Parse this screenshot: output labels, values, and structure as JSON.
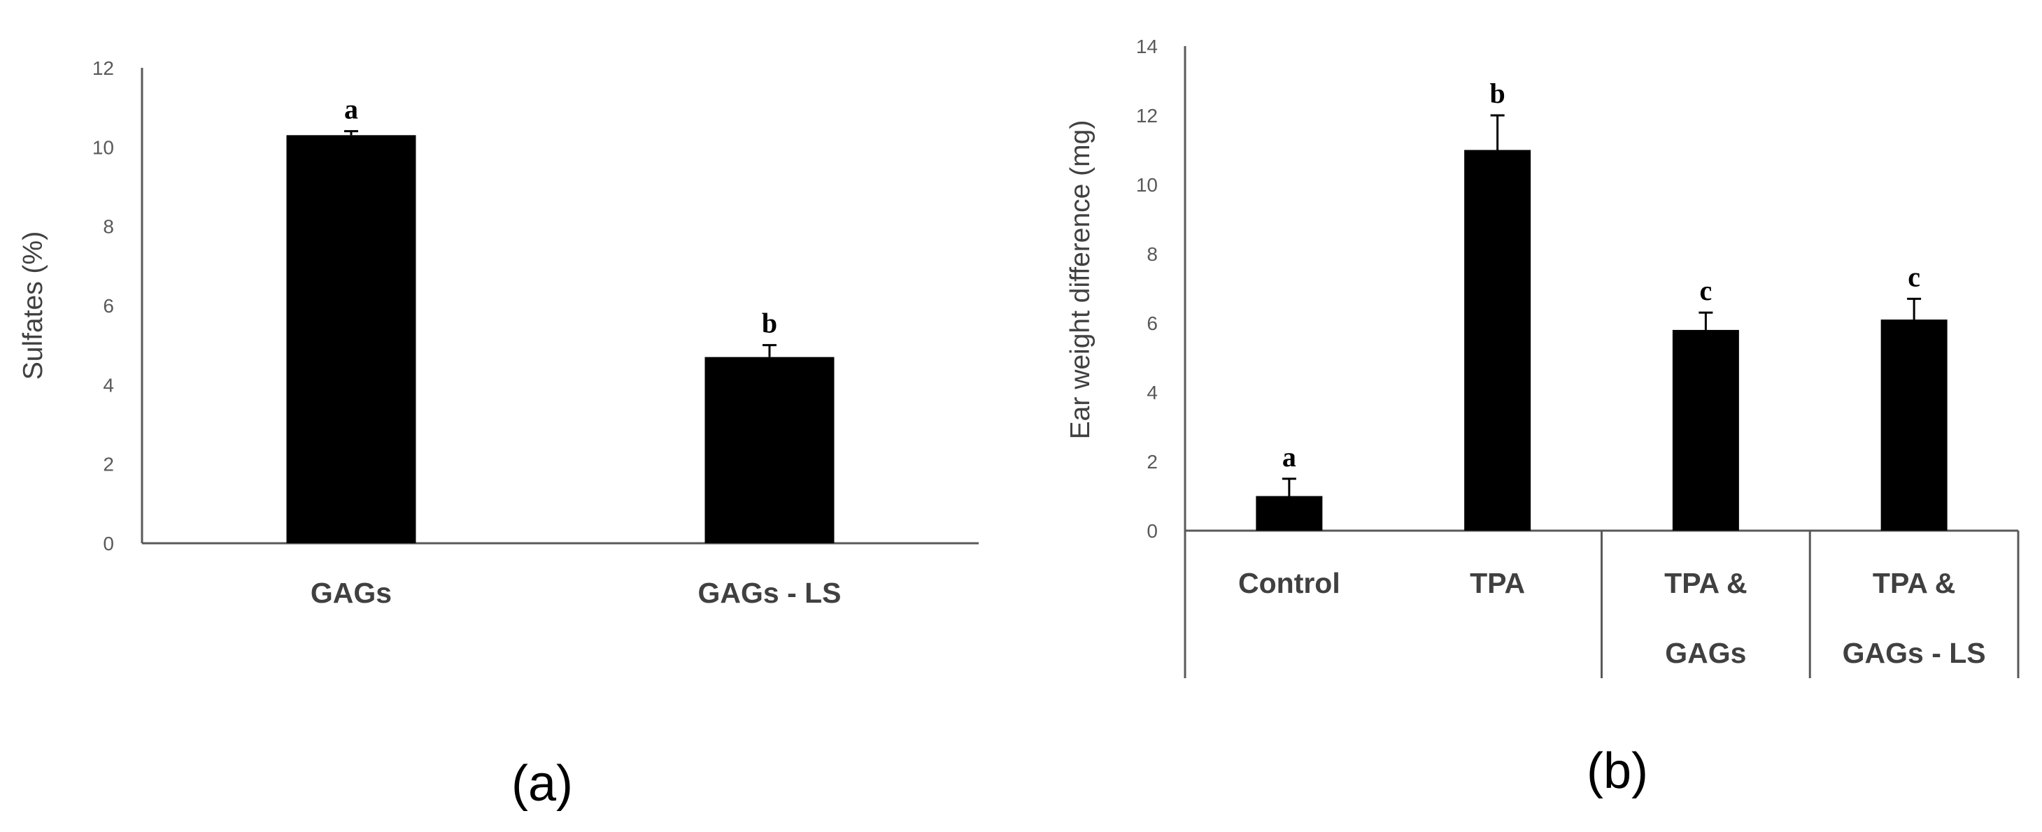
{
  "chart_data": [
    {
      "type": "bar",
      "panel_label": "(a)",
      "categories": [
        "GAGs",
        "GAGs - LS"
      ],
      "values": [
        10.3,
        4.7
      ],
      "errors": [
        0.1,
        0.3
      ],
      "significance": [
        "a",
        "b"
      ],
      "ylabel": "Sulfates (%)",
      "xlabel": "",
      "ylim": [
        0,
        12
      ],
      "yticks": [
        "0",
        "2",
        "4",
        "6",
        "8",
        "10",
        "12"
      ],
      "bar_color": "#000000",
      "grid": false
    },
    {
      "type": "bar",
      "panel_label": "(b)",
      "categories": [
        "Control",
        "TPA",
        "TPA & GAGs",
        "TPA & GAGs - LS"
      ],
      "category_lines": [
        [
          "Control"
        ],
        [
          "TPA"
        ],
        [
          "TPA &",
          "GAGs"
        ],
        [
          "TPA &",
          "GAGs - LS"
        ]
      ],
      "values": [
        1.0,
        11.0,
        5.8,
        6.1
      ],
      "errors": [
        0.5,
        1.0,
        0.5,
        0.6
      ],
      "significance": [
        "a",
        "b",
        "c",
        "c"
      ],
      "ylabel": "Ear weight difference (mg)",
      "xlabel": "",
      "ylim": [
        0,
        14
      ],
      "yticks": [
        "0",
        "2",
        "4",
        "6",
        "8",
        "10",
        "12",
        "14"
      ],
      "bar_color": "#000000",
      "grid": false
    }
  ]
}
